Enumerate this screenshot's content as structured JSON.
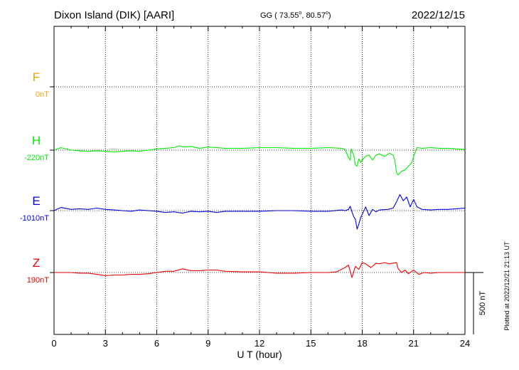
{
  "header": {
    "station": "Dixon Island (DIK)  [AARI]",
    "coords": "GG ( 73.55",
    "coords_lat_deg": "o",
    "coords_sep": ",  80.57",
    "coords_lon_deg": "o",
    "coords_end": ")",
    "date": "2022/12/15"
  },
  "side_note": "Plotted at 2022/12/21 21:13 UT",
  "scale_bar": {
    "label": "500 nT",
    "value_nT": 500
  },
  "chart_data": {
    "type": "line",
    "xlabel": "U T (hour)",
    "xlim": [
      0,
      24
    ],
    "x_ticks": [
      0,
      3,
      6,
      9,
      12,
      15,
      18,
      21,
      24
    ],
    "x_tick_labels": [
      "0",
      "3",
      "6",
      "9",
      "12",
      "15",
      "18",
      "21",
      "24"
    ],
    "grid": "dotted vertical every 3 h; dotted horizontal at each component baseline",
    "series": [
      {
        "name": "F",
        "baseline_label": "0nT",
        "color": "#f0a000",
        "x": [],
        "values": []
      },
      {
        "name": "H",
        "baseline_label": "-220nT",
        "color": "#00ee00",
        "x": [
          0,
          0.4,
          1,
          1.5,
          2,
          2.5,
          3,
          3.5,
          4,
          4.5,
          5,
          5.5,
          6,
          6.5,
          7,
          7.3,
          7.6,
          8,
          8.5,
          9,
          9.5,
          10,
          11,
          12,
          13,
          14,
          15,
          16,
          16.8,
          17.0,
          17.2,
          17.3,
          17.35,
          17.5,
          17.6,
          17.7,
          17.8,
          17.9,
          18.0,
          18.2,
          18.4,
          18.6,
          18.8,
          19.0,
          19.3,
          19.6,
          19.8,
          19.9,
          20.0,
          20.1,
          20.3,
          20.5,
          20.7,
          20.9,
          21.0,
          21.2,
          21.5,
          22,
          22.5,
          23,
          23.5,
          24
        ],
        "values": [
          -220,
          -200,
          -220,
          -225,
          -230,
          -225,
          -230,
          -235,
          -230,
          -225,
          -230,
          -220,
          -210,
          -205,
          -200,
          -185,
          -195,
          -190,
          -205,
          -195,
          -200,
          -205,
          -205,
          -200,
          -200,
          -205,
          -205,
          -200,
          -205,
          -215,
          -280,
          -300,
          -210,
          -260,
          -340,
          -350,
          -290,
          -320,
          -300,
          -270,
          -260,
          -300,
          -260,
          -250,
          -270,
          -245,
          -260,
          -300,
          -400,
          -420,
          -390,
          -380,
          -350,
          -320,
          -270,
          -200,
          -205,
          -200,
          -205,
          -205,
          -210,
          -215
        ]
      },
      {
        "name": "E",
        "baseline_label": "-1010nT",
        "color": "#0000dd",
        "x": [
          0,
          0.4,
          1,
          1.5,
          2,
          2.5,
          3,
          3.5,
          4,
          4.5,
          5,
          5.5,
          6,
          6.5,
          7,
          7.5,
          8,
          8.5,
          9,
          9.5,
          10,
          11,
          12,
          13,
          14,
          15,
          16,
          16.8,
          17.0,
          17.2,
          17.3,
          17.4,
          17.5,
          17.6,
          17.7,
          17.8,
          17.9,
          18.0,
          18.2,
          18.4,
          18.6,
          18.8,
          19.0,
          19.5,
          19.8,
          20.0,
          20.2,
          20.4,
          20.6,
          20.8,
          21.0,
          21.2,
          21.5,
          22,
          22.5,
          23,
          23.5,
          24
        ],
        "values": [
          -1010,
          -985,
          -1000,
          -995,
          -1000,
          -990,
          -1000,
          -1005,
          -1010,
          -1015,
          -1005,
          -1010,
          -1015,
          -1025,
          -1020,
          -1030,
          -1015,
          -1020,
          -1015,
          -1025,
          -1015,
          -1015,
          -1015,
          -1010,
          -1010,
          -1015,
          -1015,
          -1005,
          -1010,
          -1000,
          -975,
          -1020,
          -1060,
          -1080,
          -1160,
          -1120,
          -1070,
          -1040,
          -980,
          -1050,
          -1000,
          -1020,
          -1005,
          -1000,
          -990,
          -940,
          -880,
          -930,
          -900,
          -980,
          -920,
          -980,
          -1000,
          -1005,
          -1000,
          -1000,
          -995,
          -990
        ]
      },
      {
        "name": "Z",
        "baseline_label": "190nT",
        "color": "#ee0000",
        "x": [
          0,
          0.5,
          1,
          1.5,
          2,
          2.5,
          3,
          3.5,
          4,
          4.5,
          5,
          5.5,
          6,
          6.5,
          7,
          7.5,
          8,
          8.5,
          9,
          9.5,
          10,
          11,
          12,
          13,
          14,
          15,
          16,
          16.5,
          17.0,
          17.2,
          17.4,
          17.6,
          17.8,
          18.0,
          18.2,
          18.5,
          18.8,
          19.0,
          19.3,
          19.6,
          20.0,
          20.1,
          20.3,
          20.5,
          20.7,
          21.0,
          21.3,
          21.6,
          22,
          22.5,
          23,
          23.5,
          24
        ],
        "values": [
          190,
          190,
          190,
          185,
          185,
          175,
          165,
          170,
          170,
          175,
          175,
          180,
          190,
          200,
          200,
          220,
          205,
          205,
          210,
          210,
          200,
          195,
          195,
          185,
          185,
          190,
          190,
          195,
          230,
          250,
          150,
          240,
          215,
          270,
          260,
          230,
          265,
          260,
          270,
          260,
          270,
          220,
          190,
          210,
          180,
          210,
          175,
          190,
          185,
          190,
          190,
          190,
          190
        ]
      }
    ]
  }
}
